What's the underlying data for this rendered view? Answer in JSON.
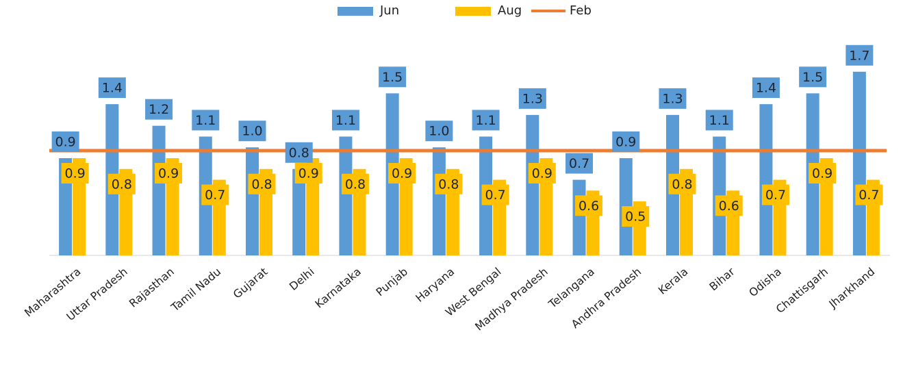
{
  "chart_data": {
    "type": "bar",
    "categories": [
      "Maharashtra",
      "Uttar Pradesh",
      "Rajasthan",
      "Tamil Nadu",
      "Gujarat",
      "Delhi",
      "Karnataka",
      "Punjab",
      "Haryana",
      "West Bengal",
      "Madhya Pradesh",
      "Telangana",
      "Andhra Pradesh",
      "Kerala",
      "Bihar",
      "Odisha",
      "Chattisgarh",
      "Jharkhand"
    ],
    "series": [
      {
        "name": "Jun",
        "color": "#5b9bd5",
        "values": [
          0.9,
          1.4,
          1.2,
          1.1,
          1.0,
          0.8,
          1.1,
          1.5,
          1.0,
          1.1,
          1.3,
          0.7,
          0.9,
          1.3,
          1.1,
          1.4,
          1.5,
          1.7
        ],
        "value_labels": [
          "0.9",
          "1.4",
          "1.2",
          "1.1",
          "1.0",
          "0.8",
          "1.1",
          "1.5",
          "1.0",
          "1.1",
          "1.3",
          "0.7",
          "0.9",
          "1.3",
          "1.1",
          "1.4",
          "1.5",
          "1.7"
        ]
      },
      {
        "name": "Aug",
        "color": "#ffc000",
        "values": [
          0.9,
          0.8,
          0.9,
          0.7,
          0.8,
          0.9,
          0.8,
          0.9,
          0.8,
          0.7,
          0.9,
          0.6,
          0.5,
          0.8,
          0.6,
          0.7,
          0.9,
          0.7
        ],
        "value_labels": [
          "0.9",
          "0.8",
          "0.9",
          "0.7",
          "0.8",
          "0.9",
          "0.8",
          "0.9",
          "0.8",
          "0.7",
          "0.9",
          "0.6",
          "0.5",
          "0.8",
          "0.6",
          "0.7",
          "0.9",
          "0.7"
        ]
      },
      {
        "name": "Feb",
        "color": "#ed7d31",
        "type": "line",
        "values": [
          0.97,
          0.97,
          0.97,
          0.97,
          0.97,
          0.97,
          0.97,
          0.97,
          0.97,
          0.97,
          0.97,
          0.97,
          0.97,
          0.97,
          0.97,
          0.97,
          0.97,
          0.97
        ]
      }
    ],
    "ylim": [
      0,
      1.8
    ],
    "legend": "top"
  }
}
